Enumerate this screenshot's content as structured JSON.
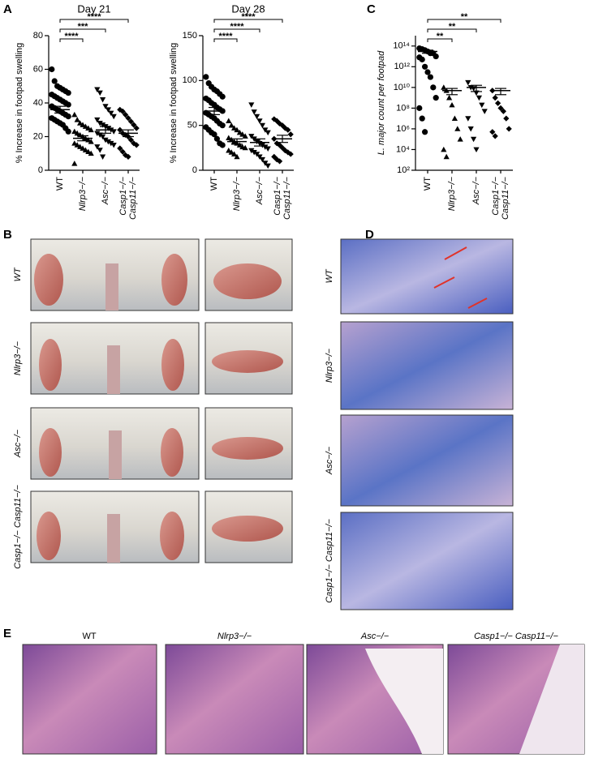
{
  "chart_data": [
    {
      "type": "dot",
      "panel": "A",
      "title": "Day 21",
      "y_label": "% Increase in footpad swelling",
      "categories": [
        "WT",
        "Nlrp3−/−",
        "Asc−/−",
        [
          "Casp1−/−",
          "Casp11−/−"
        ]
      ],
      "markers": [
        "circle",
        "triangle",
        "triangle-down",
        "diamond"
      ],
      "color": "#000000",
      "points": [
        [
          60,
          53,
          50,
          49,
          48,
          47,
          46,
          45,
          44,
          43,
          42,
          41,
          40,
          39,
          38,
          37,
          36,
          35,
          34,
          33,
          32,
          31,
          30,
          29,
          28,
          27,
          25,
          23
        ],
        [
          33,
          30,
          28,
          27,
          26,
          25,
          24,
          23,
          22,
          21,
          20,
          19,
          18,
          17,
          16,
          15,
          14,
          13,
          12,
          11,
          10,
          4
        ],
        [
          48,
          46,
          42,
          38,
          36,
          34,
          32,
          30,
          28,
          27,
          26,
          25,
          24,
          23,
          22,
          21,
          20,
          18,
          17,
          16,
          15,
          14,
          12,
          8
        ],
        [
          36,
          35,
          33,
          31,
          29,
          27,
          25,
          24,
          22,
          21,
          20,
          18,
          16,
          15,
          13,
          11,
          9,
          8
        ]
      ],
      "means": [
        36,
        19,
        24,
        22
      ],
      "sems": [
        2,
        1.5,
        2,
        2
      ],
      "ylim": [
        0,
        80
      ],
      "yticks": [
        0,
        20,
        40,
        60,
        80
      ],
      "annotations": [
        "****",
        "***",
        "****"
      ]
    },
    {
      "type": "dot",
      "title": "Day 28",
      "y_label": "% Increase in footpad swelling",
      "categories": [
        "WT",
        "Nlrp3−/−",
        "Asc−/−",
        [
          "Casp1−/−",
          "Casp11−/−"
        ]
      ],
      "markers": [
        "circle",
        "triangle",
        "triangle-down",
        "diamond"
      ],
      "color": "#000000",
      "points": [
        [
          104,
          97,
          93,
          90,
          88,
          85,
          82,
          80,
          78,
          75,
          73,
          70,
          68,
          66,
          64,
          62,
          60,
          58,
          55,
          52,
          50,
          48,
          45,
          42,
          40,
          35,
          30,
          28
        ],
        [
          55,
          50,
          47,
          45,
          42,
          40,
          38,
          36,
          34,
          32,
          30,
          28,
          26,
          25,
          22,
          20,
          18,
          15
        ],
        [
          73,
          65,
          60,
          55,
          50,
          45,
          42,
          38,
          35,
          32,
          30,
          28,
          26,
          24,
          22,
          20,
          18,
          15,
          12,
          8,
          5
        ],
        [
          57,
          55,
          52,
          50,
          47,
          45,
          40,
          35,
          30,
          28,
          25,
          22,
          20,
          18,
          15,
          12,
          10
        ]
      ],
      "means": [
        66,
        32,
        31,
        35
      ],
      "sems": [
        4,
        3,
        4,
        4
      ],
      "ylim": [
        0,
        150
      ],
      "yticks": [
        0,
        50,
        100,
        150
      ],
      "annotations": [
        "****",
        "****",
        "****"
      ]
    },
    {
      "type": "dot",
      "panel": "C",
      "y_label": "L. major count per footpad",
      "log_scale": true,
      "categories": [
        "WT",
        "Nlrp3−/−",
        "Asc−/−",
        [
          "Casp1−/−",
          "Casp11−/−"
        ]
      ],
      "markers": [
        "circle",
        "triangle",
        "triangle-down",
        "diamond"
      ],
      "color": "#000000",
      "points": [
        [
          60000000000000.0,
          50000000000000.0,
          40000000000000.0,
          30000000000000.0,
          20000000000000.0,
          20000000000000.0,
          10000000000000.0,
          8000000000000.0,
          5000000000000.0,
          1000000000000.0,
          300000000000.0,
          100000000000.0,
          10000000000.0,
          1000000000.0,
          100000000.0,
          10000000.0,
          500000.0
        ],
        [
          10000000000.0,
          5000000000.0,
          1000000000.0,
          200000000.0,
          10000000.0,
          1000000.0,
          100000.0,
          10000.0,
          2000.0
        ],
        [
          30000000000.0,
          10000000000.0,
          8000000000.0,
          3000000000.0,
          1000000000.0,
          200000000.0,
          50000000.0,
          10000000.0,
          1000000.0,
          100000.0,
          10000.0
        ],
        [
          5000000000.0,
          1000000000.0,
          300000000.0,
          100000000.0,
          50000000.0,
          10000000.0,
          1000000.0,
          500000.0,
          200000.0
        ]
      ],
      "means": [
        30000000000000.0,
        5000000000.0,
        10000000000.0,
        5000000000.0
      ],
      "sems": [
        10000000000000.0,
        3000000000.0,
        6000000000.0,
        3000000000.0
      ],
      "ylim": [
        100,
        1000000000000000.0
      ],
      "yticks": [
        {
          "value": 100,
          "label": "10²"
        },
        {
          "value": 10000.0,
          "label": "10⁴"
        },
        {
          "value": 1000000.0,
          "label": "10⁶"
        },
        {
          "value": 100000000.0,
          "label": "10⁸"
        },
        {
          "value": 10000000000.0,
          "label": "10¹⁰"
        },
        {
          "value": 1000000000000.0,
          "label": "10¹²"
        },
        {
          "value": 100000000000000.0,
          "label": "10¹⁴"
        }
      ],
      "annotations": [
        "**",
        "**",
        "**"
      ]
    }
  ],
  "panel_b": {
    "label": "B",
    "rows": [
      "WT",
      "Nlrp3−/−",
      "Asc−/−",
      "Casp1−/− Casp11−/−"
    ]
  },
  "panel_d": {
    "label": "D",
    "rows": [
      "WT",
      "Nlrp3−/−",
      "Asc−/−",
      "Casp1−/− Casp11−/−"
    ]
  },
  "panel_e": {
    "label": "E",
    "columns": [
      "WT",
      "Nlrp3−/−",
      "Asc−/−",
      "Casp1−/− Casp11−/−"
    ]
  }
}
